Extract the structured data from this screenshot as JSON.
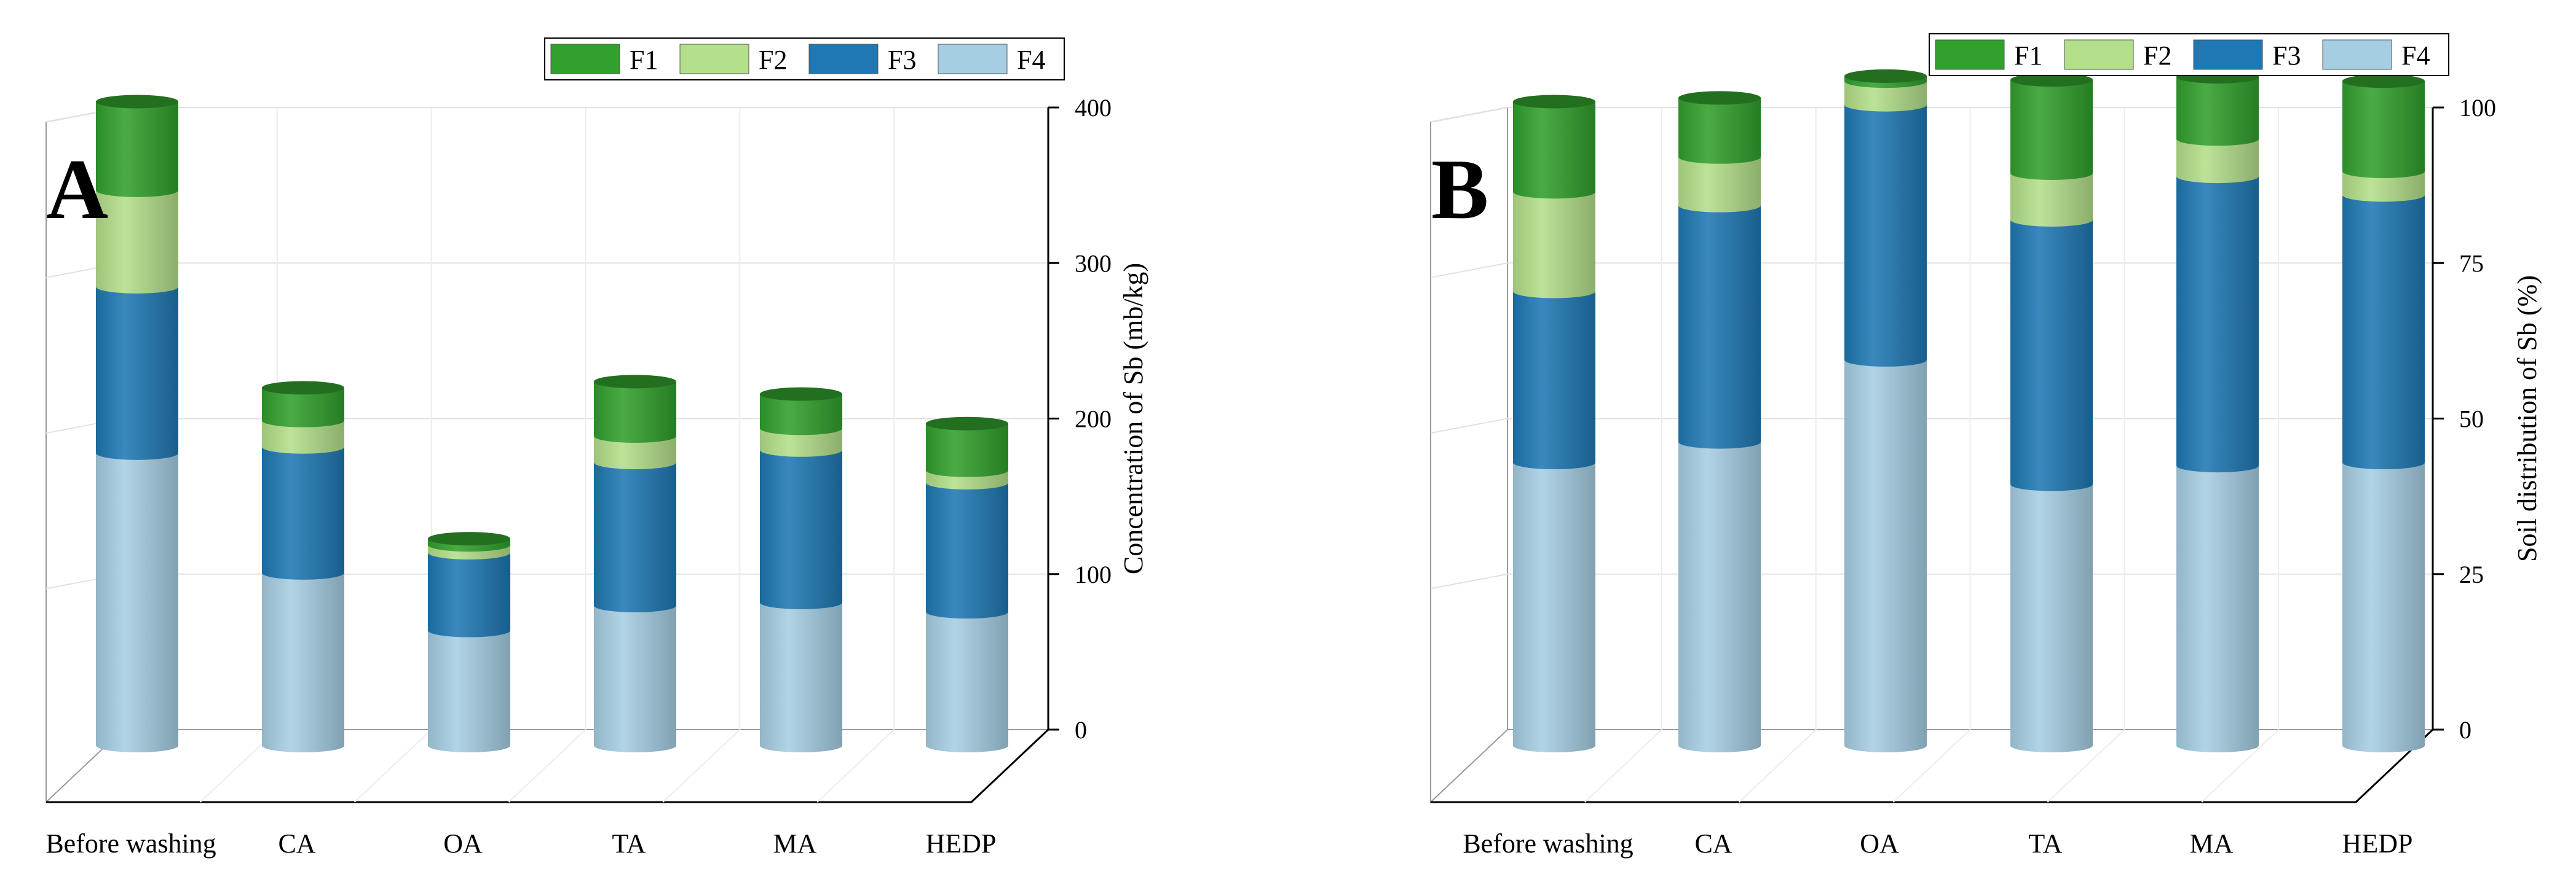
{
  "colors": {
    "F1": "#31a02c",
    "F2": "#b3df8a",
    "F3": "#1f78b4",
    "F4": "#a6cee3"
  },
  "chart_data": [
    {
      "type": "bar",
      "stacked": true,
      "style": "3d-cylinder",
      "panel_label": "A",
      "title": "",
      "xlabel": "",
      "ylabel": "Concentration of Sb (mb/kg)",
      "ylim": [
        0,
        400
      ],
      "yticks": [
        "0",
        "100",
        "200",
        "300",
        "400"
      ],
      "y_axis_side": "right",
      "grid": true,
      "legend_position": "top-right",
      "categories": [
        "Before washing",
        "CA",
        "OA",
        "TA",
        "MA",
        "HEDP"
      ],
      "series": [
        {
          "name": "F4",
          "values": [
            188,
            111,
            74,
            90,
            92,
            86
          ]
        },
        {
          "name": "F3",
          "values": [
            107,
            81,
            50,
            92,
            98,
            83
          ]
        },
        {
          "name": "F2",
          "values": [
            62,
            17,
            5,
            17,
            14,
            8
          ]
        },
        {
          "name": "F1",
          "values": [
            57,
            21,
            4,
            35,
            22,
            30
          ]
        }
      ]
    },
    {
      "type": "bar",
      "stacked": true,
      "style": "3d-cylinder",
      "panel_label": "B",
      "title": "",
      "xlabel": "",
      "ylabel": "Soil distribution of Sb (%)",
      "ylim": [
        0,
        100
      ],
      "yticks": [
        "0",
        "25",
        "50",
        "75",
        "100"
      ],
      "y_axis_side": "right",
      "grid": true,
      "legend_position": "top-right",
      "categories": [
        "Before washing",
        "CA",
        "OA",
        "TA",
        "MA",
        "HEDP"
      ],
      "series": [
        {
          "name": "F4",
          "values": [
            45.5,
            48.8,
            62,
            42,
            45,
            45.5
          ]
        },
        {
          "name": "F3",
          "values": [
            27.5,
            38,
            41,
            42.5,
            46.5,
            43
          ]
        },
        {
          "name": "F2",
          "values": [
            16,
            7.8,
            3.8,
            7.5,
            6,
            3.8
          ]
        },
        {
          "name": "F1",
          "values": [
            14.5,
            9.5,
            0.8,
            15,
            10,
            14.5
          ]
        }
      ]
    }
  ]
}
